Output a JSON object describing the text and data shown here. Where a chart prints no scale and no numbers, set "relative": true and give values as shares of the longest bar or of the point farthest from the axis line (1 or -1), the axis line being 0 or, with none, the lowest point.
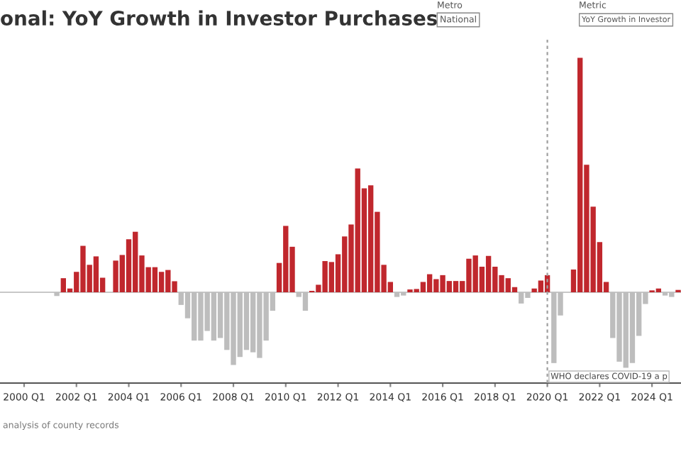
{
  "chart_data": {
    "type": "bar",
    "title": "onal: YoY Growth in Investor Purchases",
    "relative": true,
    "categories": [
      "2000 Q1",
      null,
      null,
      null,
      null,
      null,
      null,
      null,
      "2002 Q1",
      null,
      null,
      null,
      null,
      null,
      null,
      null,
      "2004 Q1",
      null,
      null,
      null,
      null,
      null,
      null,
      null,
      "2006 Q1",
      null,
      null,
      null,
      null,
      null,
      null,
      null,
      "2008 Q1",
      null,
      null,
      null,
      null,
      null,
      null,
      null,
      "2010 Q1",
      null,
      null,
      null,
      null,
      null,
      null,
      null,
      "2012 Q1",
      null,
      null,
      null,
      null,
      null,
      null,
      null,
      "2014 Q1",
      null,
      null,
      null,
      null,
      null,
      null,
      null,
      "2016 Q1",
      null,
      null,
      null,
      null,
      null,
      null,
      null,
      "2018 Q1",
      null,
      null,
      null,
      null,
      null,
      null,
      null,
      "2020 Q1",
      null,
      null,
      null,
      null,
      null,
      null,
      null,
      "2022 Q1",
      null,
      null,
      null,
      null,
      null,
      null,
      null,
      "2024 Q1",
      null,
      null,
      null,
      null
    ],
    "values": [
      null,
      null,
      null,
      null,
      null,
      -0.016,
      0.06,
      0.016,
      0.087,
      0.198,
      0.117,
      0.153,
      0.062,
      0,
      0.135,
      0.159,
      0.226,
      0.258,
      0.157,
      0.107,
      0.107,
      0.087,
      0.095,
      0.047,
      -0.054,
      -0.111,
      -0.206,
      -0.206,
      -0.165,
      -0.206,
      -0.195,
      -0.246,
      -0.31,
      -0.276,
      -0.246,
      -0.256,
      -0.28,
      -0.206,
      -0.079,
      0.125,
      0.283,
      0.194,
      -0.02,
      -0.079,
      0.006,
      0.032,
      0.133,
      0.129,
      0.162,
      0.238,
      0.289,
      0.528,
      0.443,
      0.456,
      0.343,
      0.117,
      0.044,
      -0.02,
      -0.014,
      0.012,
      0.014,
      0.044,
      0.077,
      0.056,
      0.073,
      0.048,
      0.048,
      0.048,
      0.143,
      0.157,
      0.109,
      0.155,
      0.109,
      0.073,
      0.06,
      0.022,
      -0.048,
      -0.024,
      0.016,
      0.05,
      0.073,
      -0.302,
      -0.099,
      0,
      0.097,
      1,
      0.544,
      0.365,
      0.214,
      0.044,
      -0.195,
      -0.296,
      -0.322,
      -0.302,
      -0.186,
      -0.05,
      0.008,
      0.016,
      -0.014,
      -0.02,
      0.01
    ],
    "colors": [
      "#c0272d",
      "#c0272d",
      "#c0272d",
      "#c0272d",
      "#c0272d",
      "#bdbdbd",
      "#c0272d",
      "#c0272d",
      "#c0272d",
      "#c0272d",
      "#c0272d",
      "#c0272d",
      "#c0272d",
      "#c0272d",
      "#c0272d",
      "#c0272d",
      "#c0272d",
      "#c0272d",
      "#c0272d",
      "#c0272d",
      "#c0272d",
      "#c0272d",
      "#c0272d",
      "#c0272d",
      "#bdbdbd",
      "#bdbdbd",
      "#bdbdbd",
      "#bdbdbd",
      "#bdbdbd",
      "#bdbdbd",
      "#bdbdbd",
      "#bdbdbd",
      "#bdbdbd",
      "#bdbdbd",
      "#bdbdbd",
      "#bdbdbd",
      "#bdbdbd",
      "#bdbdbd",
      "#bdbdbd",
      "#c0272d",
      "#c0272d",
      "#c0272d",
      "#bdbdbd",
      "#bdbdbd",
      "#c0272d",
      "#c0272d",
      "#c0272d",
      "#c0272d",
      "#c0272d",
      "#c0272d",
      "#c0272d",
      "#c0272d",
      "#c0272d",
      "#c0272d",
      "#c0272d",
      "#c0272d",
      "#c0272d",
      "#bdbdbd",
      "#bdbdbd",
      "#c0272d",
      "#c0272d",
      "#c0272d",
      "#c0272d",
      "#c0272d",
      "#c0272d",
      "#c0272d",
      "#c0272d",
      "#c0272d",
      "#c0272d",
      "#c0272d",
      "#c0272d",
      "#c0272d",
      "#c0272d",
      "#c0272d",
      "#c0272d",
      "#c0272d",
      "#bdbdbd",
      "#bdbdbd",
      "#c0272d",
      "#c0272d",
      "#c0272d",
      "#bdbdbd",
      "#bdbdbd",
      "#c0272d",
      "#c0272d",
      "#c0272d",
      "#c0272d",
      "#c0272d",
      "#c0272d",
      "#c0272d",
      "#bdbdbd",
      "#bdbdbd",
      "#bdbdbd",
      "#bdbdbd",
      "#bdbdbd",
      "#bdbdbd",
      "#c0272d",
      "#c0272d",
      "#bdbdbd",
      "#bdbdbd",
      "#c0272d"
    ],
    "ref_lines": [
      {
        "axis": "x",
        "value": "2020 Q1",
        "label": "WHO declares COVID-19 a p",
        "color": "#a0a0a0",
        "line_style": "dashed"
      }
    ],
    "annotations": [
      "Metro",
      "National",
      "Metric",
      "YoY Growth in Investor",
      "analysis of county records"
    ]
  }
}
